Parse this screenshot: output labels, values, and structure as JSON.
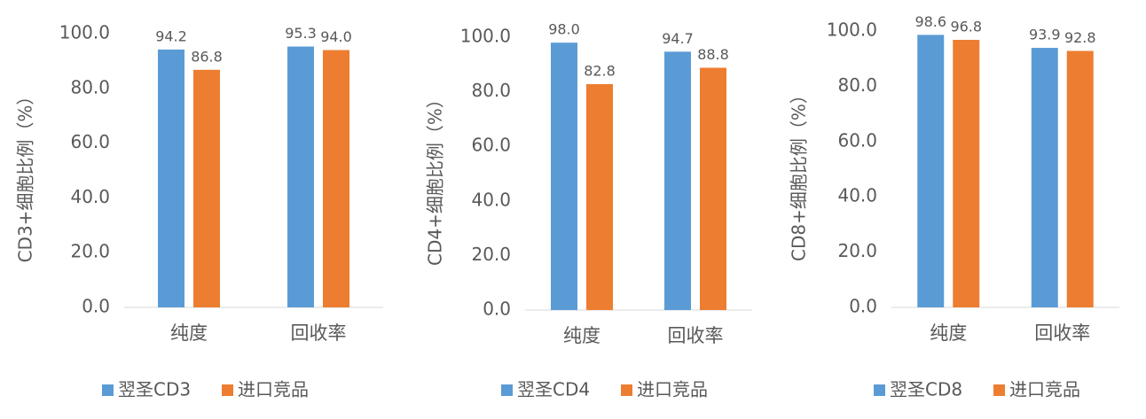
{
  "chart_data": [
    {
      "type": "bar",
      "y_label": "CD3+细胞比例（%）",
      "categories": [
        "纯度",
        "回收率"
      ],
      "series": [
        {
          "name": "翌圣CD3",
          "color": "#5b9bd5",
          "values": [
            94.2,
            95.3
          ],
          "value_labels": [
            "94.2",
            "95.3"
          ]
        },
        {
          "name": "进口竞品",
          "color": "#ed7d31",
          "values": [
            86.8,
            94.0
          ],
          "value_labels": [
            "86.8",
            "94.0"
          ]
        }
      ],
      "ylim": [
        0,
        100
      ],
      "yticks": [
        {
          "value": 0,
          "label": "0.0"
        },
        {
          "value": 20,
          "label": "20.0"
        },
        {
          "value": 40,
          "label": "40.0"
        },
        {
          "value": 60,
          "label": "60.0"
        },
        {
          "value": 80,
          "label": "80.0"
        },
        {
          "value": 100,
          "label": "100.0"
        }
      ]
    },
    {
      "type": "bar",
      "y_label": "CD4+细胞比例（%）",
      "categories": [
        "纯度",
        "回收率"
      ],
      "series": [
        {
          "name": "翌圣CD4",
          "color": "#5b9bd5",
          "values": [
            98.0,
            94.7
          ],
          "value_labels": [
            "98.0",
            "94.7"
          ]
        },
        {
          "name": "进口竞品",
          "color": "#ed7d31",
          "values": [
            82.8,
            88.8
          ],
          "value_labels": [
            "82.8",
            "88.8"
          ]
        }
      ],
      "ylim": [
        0,
        100
      ],
      "yticks": [
        {
          "value": 0,
          "label": "0.0"
        },
        {
          "value": 20,
          "label": "20.0"
        },
        {
          "value": 40,
          "label": "40.0"
        },
        {
          "value": 60,
          "label": "60.0"
        },
        {
          "value": 80,
          "label": "80.0"
        },
        {
          "value": 100,
          "label": "100.0"
        }
      ]
    },
    {
      "type": "bar",
      "y_label": "CD8+细胞比例（%）",
      "categories": [
        "纯度",
        "回收率"
      ],
      "series": [
        {
          "name": "翌圣CD8",
          "color": "#5b9bd5",
          "values": [
            98.6,
            93.9
          ],
          "value_labels": [
            "98.6",
            "93.9"
          ]
        },
        {
          "name": "进口竞品",
          "color": "#ed7d31",
          "values": [
            96.8,
            92.8
          ],
          "value_labels": [
            "96.8",
            "92.8"
          ]
        }
      ],
      "ylim": [
        0,
        100
      ],
      "yticks": [
        {
          "value": 0,
          "label": "0.0"
        },
        {
          "value": 20,
          "label": "20.0"
        },
        {
          "value": 40,
          "label": "40.0"
        },
        {
          "value": 60,
          "label": "60.0"
        },
        {
          "value": 80,
          "label": "80.0"
        },
        {
          "value": 100,
          "label": "100.0"
        }
      ]
    }
  ]
}
